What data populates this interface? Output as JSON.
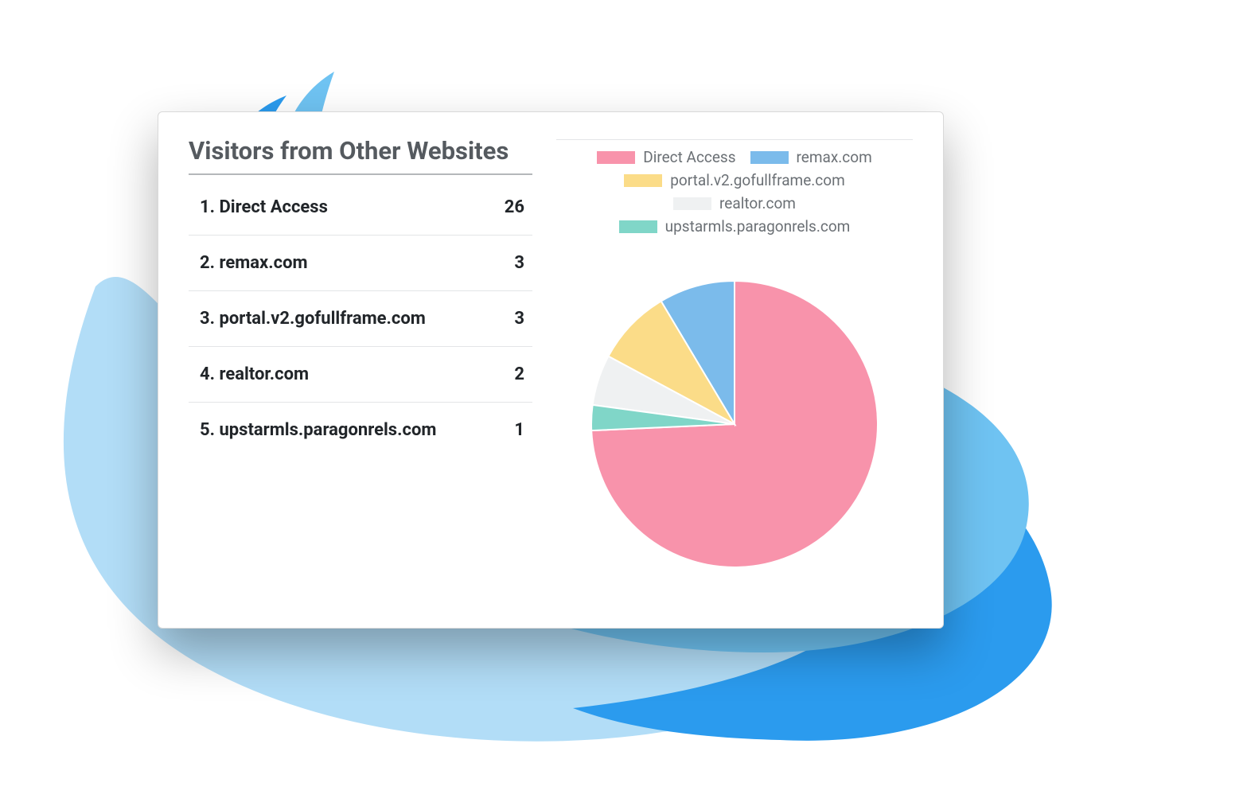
{
  "background": {
    "page_color": "#ffffff",
    "blob_colors": {
      "light": "#b2ddf7",
      "mid": "#6fc3f2",
      "dark": "#2b9bee"
    }
  },
  "card": {
    "title": "Visitors from Other Websites",
    "title_color": "#555a5f",
    "title_fontsize": 31,
    "border_color": "#d9d9d9",
    "divider_color": "#e3e5e7",
    "text_color": "#212529",
    "row_fontsize": 22
  },
  "referrers": {
    "type": "pie",
    "items": [
      {
        "rank": "1.",
        "label": "Direct Access",
        "value": 26,
        "color": "#f893ab"
      },
      {
        "rank": "2.",
        "label": "remax.com",
        "value": 3,
        "color": "#7bbbeb"
      },
      {
        "rank": "3.",
        "label": "portal.v2.gofullframe.com",
        "value": 3,
        "color": "#fbdc88"
      },
      {
        "rank": "4.",
        "label": "realtor.com",
        "value": 2,
        "color": "#eff1f2"
      },
      {
        "rank": "5.",
        "label": "upstarmls.paragonrels.com",
        "value": 1,
        "color": "#80d6c8"
      }
    ],
    "legend_text_color": "#6b7075",
    "legend_fontsize": 19,
    "pie_radius": 180,
    "pie_stroke": "#ffffff",
    "pie_stroke_width": 2,
    "start_angle_deg": 90
  }
}
